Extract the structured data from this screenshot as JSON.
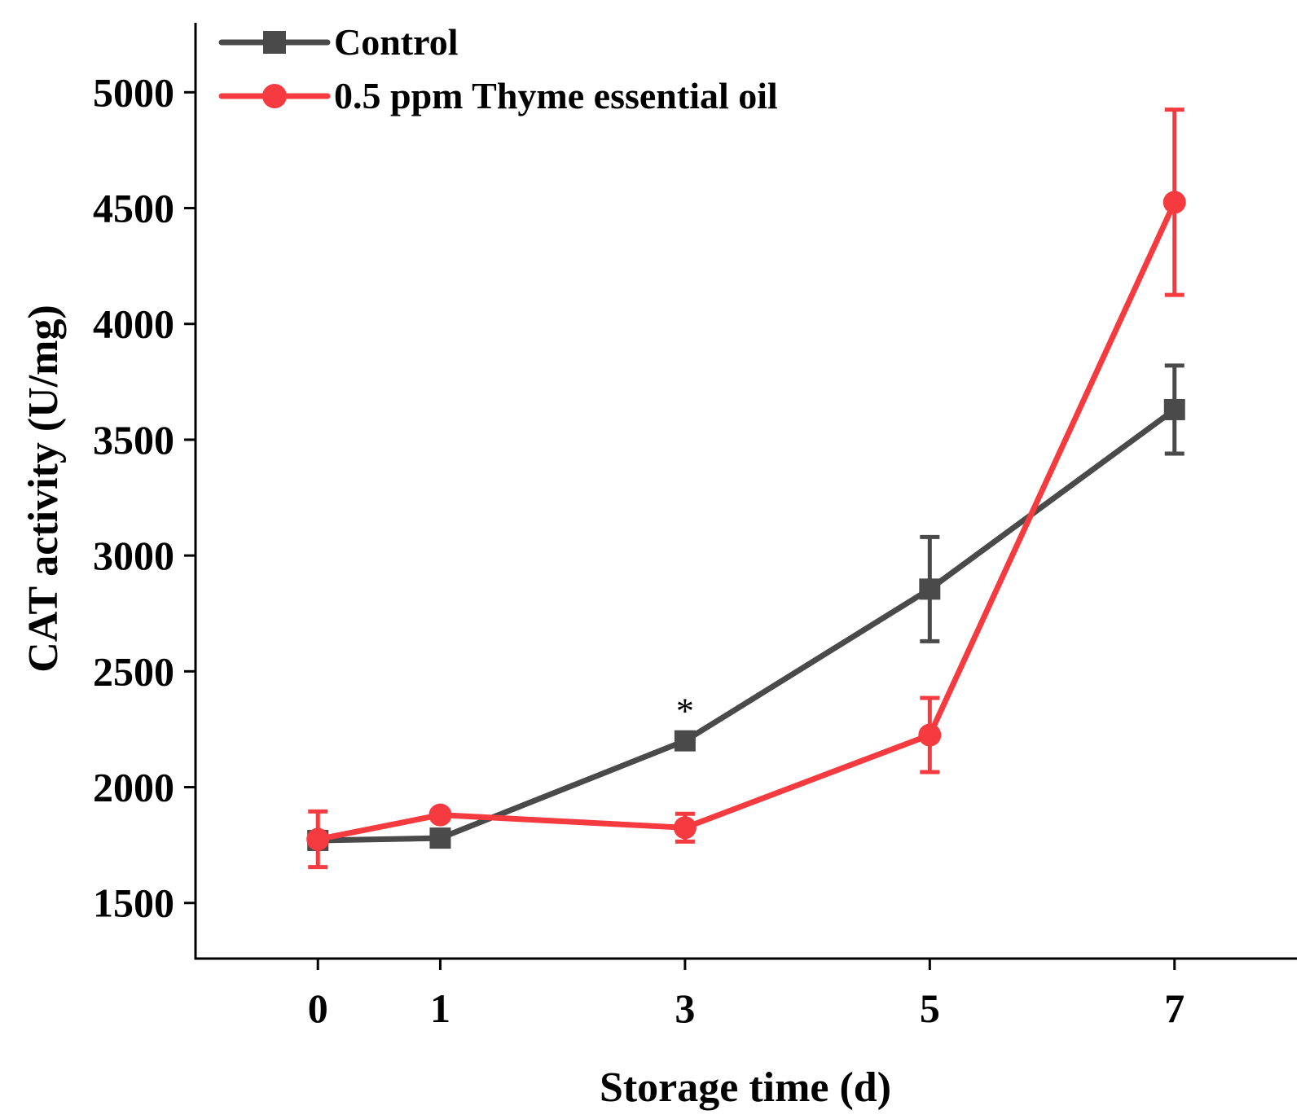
{
  "chart_data": {
    "type": "line",
    "title": "",
    "xlabel": "Storage time (d)",
    "ylabel": "CAT activity (U/mg)",
    "x": [
      0,
      1,
      3,
      5,
      7
    ],
    "xlim": [
      -1,
      8
    ],
    "ylim": [
      1260,
      5300
    ],
    "yticks": [
      1500,
      2000,
      2500,
      3000,
      3500,
      4000,
      4500,
      5000
    ],
    "xticks": [
      0,
      1,
      3,
      5,
      7
    ],
    "grid": false,
    "legend_position": "top-left",
    "series": [
      {
        "name": "Control",
        "color": "#4a4a4a",
        "marker": "square",
        "values": [
          1770,
          1780,
          2200,
          2855,
          3630
        ],
        "errors": [
          20,
          20,
          20,
          225,
          190
        ]
      },
      {
        "name": "0.5 ppm Thyme essential oil",
        "color": "#f53b3f",
        "marker": "circle",
        "values": [
          1775,
          1880,
          1825,
          2225,
          4525
        ],
        "errors": [
          120,
          20,
          60,
          160,
          400
        ]
      }
    ],
    "annotations": [
      {
        "text": "*",
        "x": 3,
        "series": "Control"
      }
    ]
  }
}
